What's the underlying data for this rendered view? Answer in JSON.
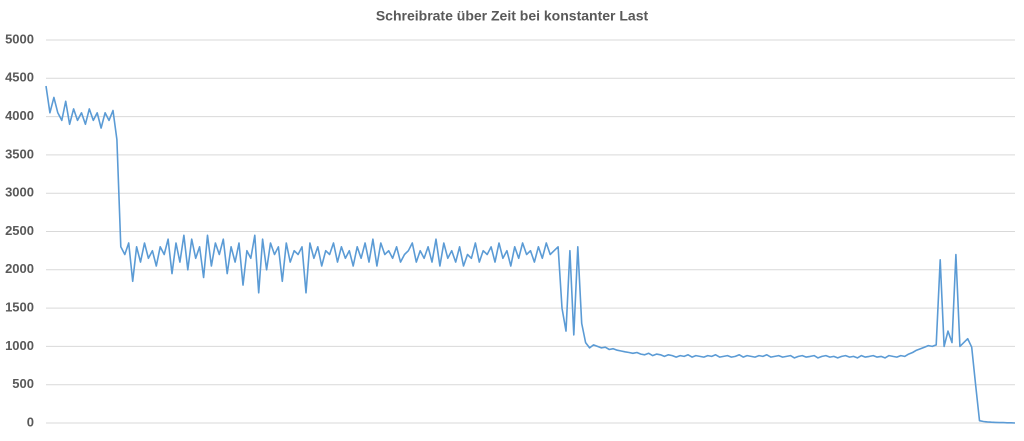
{
  "chart_data": {
    "type": "line",
    "title": "Schreibrate über Zeit bei konstanter Last",
    "ylim": [
      0,
      5000
    ],
    "yticks": [
      0,
      500,
      1000,
      1500,
      2000,
      2500,
      3000,
      3500,
      4000,
      4500,
      5000
    ],
    "grid": true,
    "series": [
      {
        "color": "#5b9bd5",
        "values": [
          4400,
          4050,
          4250,
          4050,
          3950,
          4200,
          3900,
          4100,
          3950,
          4050,
          3900,
          4100,
          3950,
          4050,
          3850,
          4050,
          3950,
          4080,
          3700,
          2300,
          2200,
          2350,
          1850,
          2300,
          2100,
          2350,
          2150,
          2250,
          2050,
          2300,
          2200,
          2400,
          1950,
          2350,
          2100,
          2450,
          2000,
          2400,
          2150,
          2300,
          1900,
          2450,
          2050,
          2350,
          2200,
          2400,
          1950,
          2300,
          2100,
          2350,
          1800,
          2250,
          2150,
          2450,
          1700,
          2400,
          2000,
          2350,
          2200,
          2300,
          1850,
          2350,
          2100,
          2250,
          2200,
          2300,
          1700,
          2350,
          2150,
          2300,
          2050,
          2250,
          2200,
          2350,
          2100,
          2300,
          2150,
          2250,
          2050,
          2300,
          2150,
          2350,
          2100,
          2400,
          2050,
          2350,
          2200,
          2250,
          2150,
          2300,
          2100,
          2200,
          2250,
          2350,
          2100,
          2250,
          2150,
          2300,
          2100,
          2400,
          2050,
          2350,
          2150,
          2250,
          2100,
          2300,
          2050,
          2200,
          2150,
          2350,
          2100,
          2250,
          2200,
          2300,
          2100,
          2350,
          2150,
          2250,
          2050,
          2300,
          2150,
          2350,
          2200,
          2250,
          2100,
          2300,
          2150,
          2350,
          2200,
          2250,
          2300,
          1500,
          1200,
          2250,
          1150,
          2300,
          1300,
          1050,
          980,
          1020,
          1000,
          980,
          990,
          960,
          970,
          950,
          940,
          930,
          920,
          910,
          920,
          900,
          890,
          910,
          880,
          900,
          890,
          870,
          890,
          880,
          860,
          880,
          870,
          890,
          860,
          880,
          870,
          860,
          880,
          870,
          890,
          860,
          870,
          880,
          860,
          870,
          890,
          860,
          880,
          870,
          860,
          880,
          870,
          890,
          860,
          870,
          880,
          860,
          870,
          880,
          850,
          870,
          880,
          860,
          870,
          880,
          850,
          870,
          880,
          860,
          870,
          850,
          870,
          880,
          860,
          870,
          850,
          880,
          860,
          870,
          880,
          860,
          870,
          850,
          880,
          870,
          860,
          880,
          870,
          900,
          920,
          950,
          970,
          990,
          1010,
          1000,
          1020,
          2130,
          1000,
          1200,
          1050,
          2200,
          1000,
          1050,
          1100,
          990,
          500,
          30,
          20,
          15,
          10,
          8,
          5,
          5,
          3,
          2,
          0
        ]
      }
    ]
  }
}
